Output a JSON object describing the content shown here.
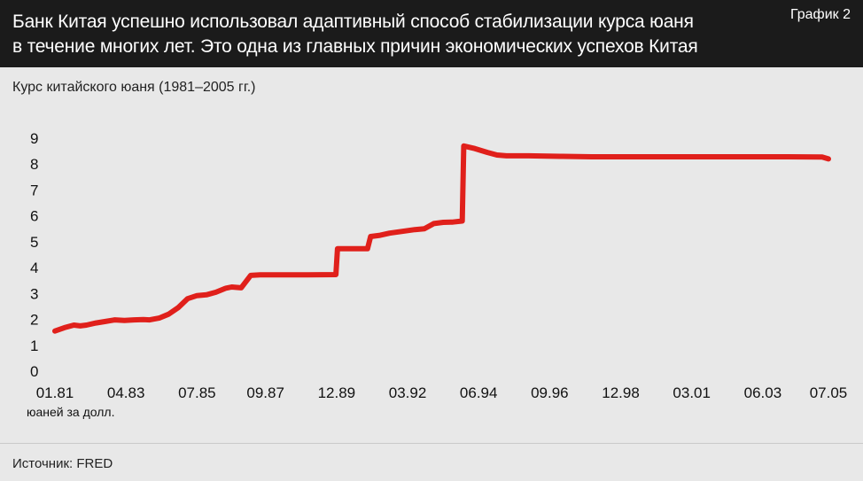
{
  "header": {
    "headline_lines": [
      "Банк Китая успешно использовал адаптивный способ стабилизации курса юаня",
      "в течение многих лет. Это одна из главных причин экономических успехов Китая"
    ],
    "tag": "График 2"
  },
  "source": "Источник: FRED",
  "colors": {
    "line": "#e0201b",
    "header_bg": "#1b1b1b",
    "background": "#e8e8e8"
  },
  "chart_data": {
    "type": "line",
    "title": "Курс китайского юаня (1981–2005 гг.)",
    "unit_label": "юаней за долл.",
    "ylim": [
      0,
      9
    ],
    "xlim": [
      1981.0,
      2005.5
    ],
    "y_ticks": [
      "0",
      "1",
      "2",
      "3",
      "4",
      "5",
      "6",
      "7",
      "8",
      "9"
    ],
    "x_ticks": [
      {
        "label": "01.81",
        "value": 1981.0
      },
      {
        "label": "04.83",
        "value": 1983.25
      },
      {
        "label": "07.85",
        "value": 1985.5
      },
      {
        "label": "09.87",
        "value": 1987.67
      },
      {
        "label": "12.89",
        "value": 1989.92
      },
      {
        "label": "03.92",
        "value": 1992.17
      },
      {
        "label": "06.94",
        "value": 1994.42
      },
      {
        "label": "09.96",
        "value": 1996.67
      },
      {
        "label": "12.98",
        "value": 1998.92
      },
      {
        "label": "03.01",
        "value": 2001.17
      },
      {
        "label": "06.03",
        "value": 2003.42
      },
      {
        "label": "07.05",
        "value": 2005.5
      }
    ],
    "grid": false,
    "legend": "none",
    "series": [
      {
        "x": [
          1981.0,
          1981.3,
          1981.6,
          1981.8,
          1982.0,
          1982.3,
          1982.6,
          1982.9,
          1983.2,
          1983.5,
          1983.8,
          1984.0,
          1984.3,
          1984.6,
          1984.9,
          1985.2,
          1985.5,
          1985.8,
          1986.1,
          1986.4,
          1986.6,
          1986.9,
          1987.2,
          1987.5,
          1988.0,
          1989.0,
          1989.9,
          1989.95,
          1990.9,
          1991.0,
          1991.3,
          1991.6,
          1992.0,
          1992.4,
          1992.7,
          1993.0,
          1993.3,
          1993.6,
          1993.9,
          1993.95,
          1994.3,
          1994.7,
          1995.0,
          1995.3,
          1996.0,
          1997.0,
          1998.0,
          1999.0,
          2000.0,
          2001.0,
          2002.0,
          2003.0,
          2004.0,
          2005.3,
          2005.5
        ],
        "y": [
          1.55,
          1.68,
          1.78,
          1.75,
          1.78,
          1.86,
          1.92,
          1.98,
          1.96,
          1.98,
          1.99,
          1.98,
          2.05,
          2.2,
          2.45,
          2.8,
          2.92,
          2.95,
          3.05,
          3.2,
          3.25,
          3.22,
          3.7,
          3.72,
          3.72,
          3.72,
          3.73,
          4.73,
          4.73,
          5.2,
          5.25,
          5.33,
          5.4,
          5.47,
          5.5,
          5.7,
          5.75,
          5.76,
          5.8,
          8.7,
          8.6,
          8.45,
          8.35,
          8.32,
          8.32,
          8.3,
          8.28,
          8.28,
          8.28,
          8.28,
          8.28,
          8.28,
          8.28,
          8.27,
          8.2
        ]
      }
    ]
  }
}
